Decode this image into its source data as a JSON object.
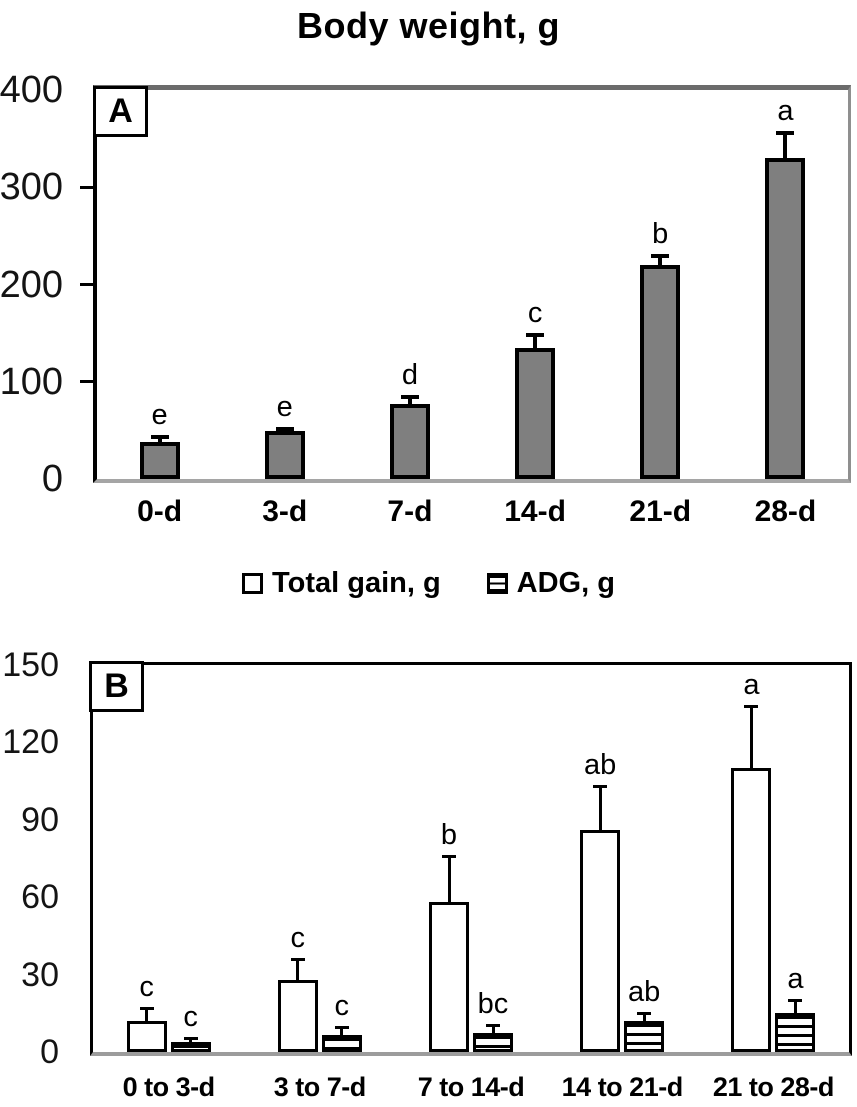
{
  "figure_title": "Body weight, g",
  "panel_a_label": "A",
  "panel_b_label": "B",
  "legend": {
    "position": "top-center",
    "items": [
      {
        "label": "Total gain, g",
        "swatch": "white-square"
      },
      {
        "label": "ADG, g",
        "swatch": "striped-square"
      }
    ]
  },
  "colors": {
    "bar_fill_gray": "#7f7f7f",
    "bar_border": "#000000",
    "axis_line": "#000000",
    "frame_gray": "#8f8f8f",
    "baseline_gray": "#a5a5a5"
  },
  "chart_data": [
    {
      "panel": "A",
      "type": "bar",
      "title": "Body weight, g",
      "categories": [
        "0-d",
        "3-d",
        "7-d",
        "14-d",
        "21-d",
        "28-d"
      ],
      "values": [
        38,
        49,
        77,
        135,
        220,
        330
      ],
      "errors": [
        6,
        3,
        8,
        14,
        10,
        27
      ],
      "sig_letters": [
        "e",
        "e",
        "d",
        "c",
        "b",
        "a"
      ],
      "ylim": [
        0,
        400
      ],
      "yticks": [
        0,
        100,
        200,
        300,
        400
      ],
      "bar_style": "solid-gray",
      "grid": false
    },
    {
      "panel": "B",
      "type": "grouped-bar",
      "categories": [
        "0 to 3-d",
        "3 to 7-d",
        "7 to 14-d",
        "14 to 21-d",
        "21 to 28-d"
      ],
      "series": [
        {
          "name": "Total gain, g",
          "bar_style": "white",
          "values": [
            12,
            28,
            58,
            86,
            110
          ],
          "errors": [
            5,
            8,
            18,
            17,
            24
          ],
          "sig_letters": [
            "c",
            "c",
            "b",
            "ab",
            "a"
          ]
        },
        {
          "name": "ADG, g",
          "bar_style": "striped",
          "values": [
            4,
            6.5,
            7.5,
            12,
            15
          ],
          "errors": [
            1.5,
            3,
            3,
            3,
            5
          ],
          "sig_letters": [
            "c",
            "c",
            "bc",
            "ab",
            "a"
          ]
        }
      ],
      "ylim": [
        0,
        150
      ],
      "yticks": [
        0,
        30,
        60,
        90,
        120,
        150
      ],
      "grid": false,
      "legend_position": "top"
    }
  ]
}
